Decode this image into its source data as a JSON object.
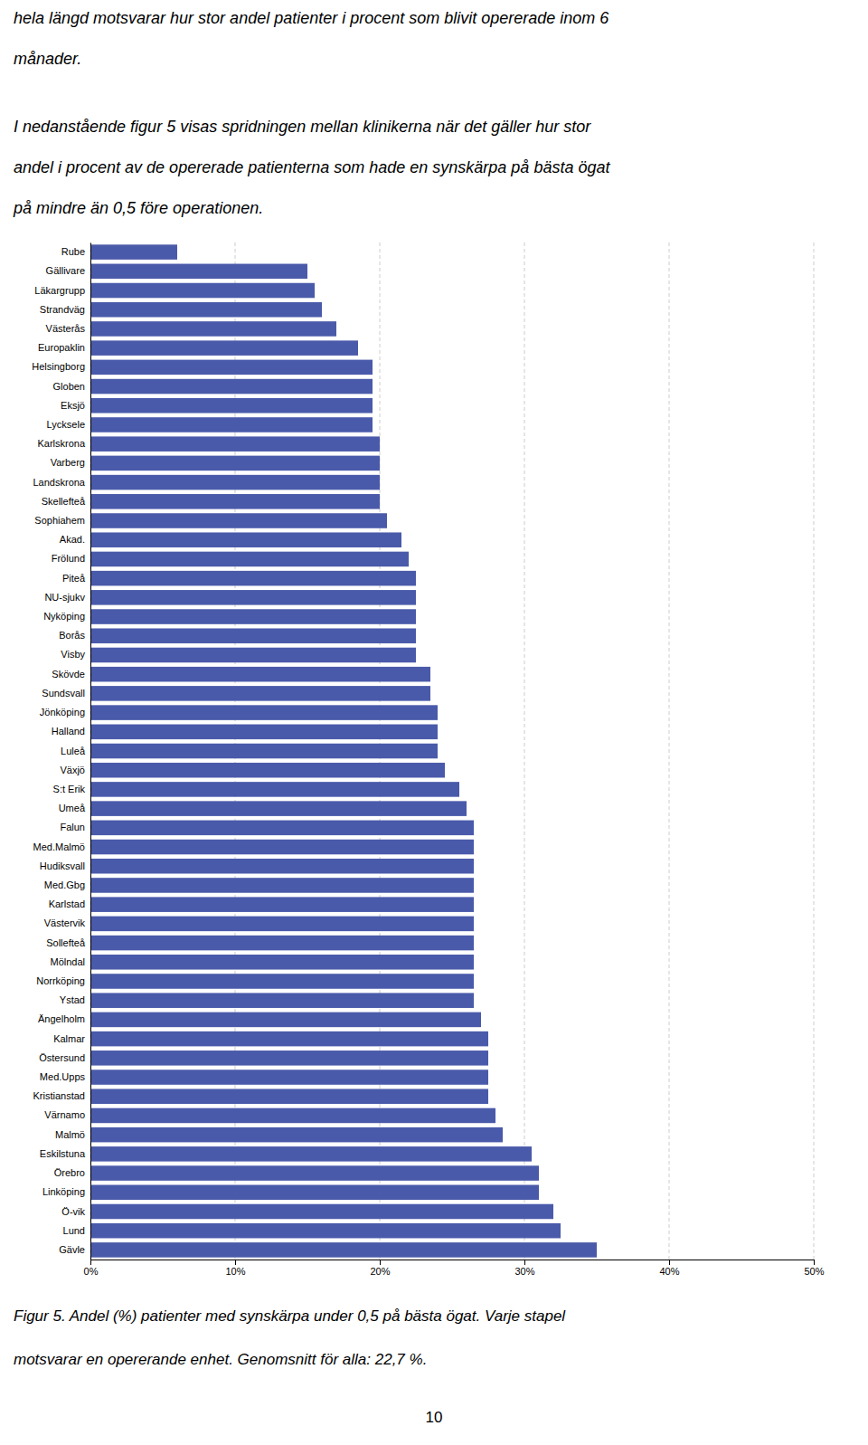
{
  "chart_data": {
    "type": "bar",
    "orientation": "horizontal",
    "annotations": [
      "hela längd motsvarar hur stor andel patienter i procent som blivit opererade inom 6",
      "månader.",
      "I nedanstående figur 5 visas spridningen mellan klinikerna när det gäller hur stor",
      "andel i procent av de opererade patienterna som hade en synskärpa på bästa ögat",
      "på mindre än 0,5 före operationen."
    ],
    "caption": [
      "Figur 5. Andel (%) patienter med synskärpa under 0,5 på bästa ögat. Varje stapel",
      "motsvarar en opererande enhet. Genomsnitt för alla: 22,7 %."
    ],
    "page_number": "10",
    "categories": [
      "Rube",
      "Gällivare",
      "Läkargrupp",
      "Strandväg",
      "Västerås",
      "Europaklin",
      "Helsingborg",
      "Globen",
      "Eksjö",
      "Lycksele",
      "Karlskrona",
      "Varberg",
      "Landskrona",
      "Skellefteå",
      "Sophiahem",
      "Akad.",
      "Frölund",
      "Piteå",
      "NU-sjukv",
      "Nyköping",
      "Borås",
      "Visby",
      "Skövde",
      "Sundsvall",
      "Jönköping",
      "Halland",
      "Luleå",
      "Växjö",
      "S:t Erik",
      "Umeå",
      "Falun",
      "Med.Malmö",
      "Hudiksvall",
      "Med.Gbg",
      "Karlstad",
      "Västervik",
      "Sollefteå",
      "Mölndal",
      "Norrköping",
      "Ystad",
      "Ängelholm",
      "Kalmar",
      "Östersund",
      "Med.Upps",
      "Kristianstad",
      "Värnamo",
      "Malmö",
      "Eskilstuna",
      "Örebro",
      "Linköping",
      "Ö-vik",
      "Lund",
      "Gävle"
    ],
    "values": [
      0.06,
      0.15,
      0.155,
      0.16,
      0.17,
      0.185,
      0.195,
      0.195,
      0.195,
      0.195,
      0.2,
      0.2,
      0.2,
      0.2,
      0.205,
      0.215,
      0.22,
      0.225,
      0.225,
      0.225,
      0.225,
      0.225,
      0.235,
      0.235,
      0.24,
      0.24,
      0.24,
      0.245,
      0.255,
      0.26,
      0.265,
      0.265,
      0.265,
      0.265,
      0.265,
      0.265,
      0.265,
      0.265,
      0.265,
      0.265,
      0.27,
      0.275,
      0.275,
      0.275,
      0.275,
      0.28,
      0.285,
      0.305,
      0.31,
      0.31,
      0.32,
      0.325,
      0.35
    ],
    "color": "#4a5aaa",
    "xlim": [
      0.0,
      0.5
    ],
    "xticks": [
      {
        "value": 0.0,
        "label": "0%"
      },
      {
        "value": 0.1,
        "label": "10%"
      },
      {
        "value": 0.2,
        "label": "20%"
      },
      {
        "value": 0.3,
        "label": "30%"
      },
      {
        "value": 0.4,
        "label": "40%"
      },
      {
        "value": 0.5,
        "label": "50%"
      }
    ],
    "grid": true
  }
}
